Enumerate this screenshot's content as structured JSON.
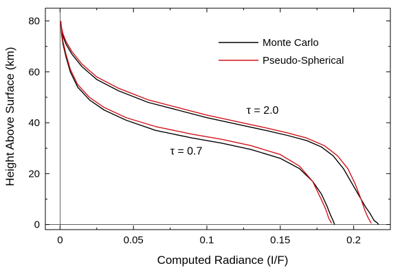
{
  "chart_data": {
    "type": "line",
    "xlabel": "Computed Radiance (I/F)",
    "ylabel": "Height Above Surface (km)",
    "xlim": [
      -0.01,
      0.225
    ],
    "ylim": [
      -2,
      85
    ],
    "xticks": [
      0,
      0.05,
      0.1,
      0.15,
      0.2
    ],
    "xtick_labels": [
      "0",
      "0.05",
      "0.1",
      "0.15",
      "0.2"
    ],
    "yticks": [
      0,
      20,
      40,
      60,
      80
    ],
    "ytick_labels": [
      "0",
      "20",
      "40",
      "60",
      "80"
    ],
    "grid": false,
    "legend": {
      "position": "top-right"
    },
    "series": [
      {
        "name": "Monte Carlo",
        "color": "#000000",
        "group": "tau-2.0",
        "x": [
          0.0005,
          0.001,
          0.002,
          0.004,
          0.008,
          0.015,
          0.025,
          0.04,
          0.06,
          0.08,
          0.1,
          0.12,
          0.14,
          0.155,
          0.168,
          0.178,
          0.186,
          0.193,
          0.199,
          0.204,
          0.208,
          0.211,
          0.213,
          0.214,
          0.216,
          0.217
        ],
        "y": [
          79,
          77,
          74,
          71,
          67,
          62,
          57,
          52.5,
          48,
          45,
          42,
          39.5,
          37,
          35,
          33,
          30.5,
          27,
          22,
          16,
          11,
          7,
          4.5,
          2.5,
          1.5,
          0.7,
          0
        ]
      },
      {
        "name": "Pseudo-Spherical",
        "color": "#d0131a",
        "group": "tau-2.0",
        "x": [
          0.0005,
          0.001,
          0.002,
          0.004,
          0.008,
          0.015,
          0.025,
          0.04,
          0.06,
          0.08,
          0.1,
          0.12,
          0.14,
          0.155,
          0.168,
          0.18,
          0.189,
          0.196,
          0.201,
          0.205,
          0.208,
          0.21,
          0.212
        ],
        "y": [
          80,
          77.5,
          75,
          72,
          68,
          63,
          58,
          53.5,
          49,
          46,
          43,
          40.5,
          38,
          36,
          34,
          31,
          27,
          22,
          16,
          10,
          5,
          2.5,
          0.5
        ]
      },
      {
        "name": "Monte Carlo",
        "color": "#000000",
        "group": "tau-0.7",
        "x": [
          0.0005,
          0.001,
          0.002,
          0.004,
          0.007,
          0.012,
          0.02,
          0.03,
          0.045,
          0.065,
          0.09,
          0.11,
          0.13,
          0.15,
          0.163,
          0.172,
          0.178,
          0.182,
          0.184,
          0.186,
          0.187
        ],
        "y": [
          79,
          75,
          71,
          66,
          60,
          54,
          49,
          45,
          41,
          37,
          34,
          32,
          29.5,
          26,
          22,
          17,
          12,
          7,
          4,
          1.5,
          0
        ]
      },
      {
        "name": "Pseudo-Spherical",
        "color": "#d0131a",
        "group": "tau-0.7",
        "x": [
          0.0005,
          0.001,
          0.002,
          0.004,
          0.007,
          0.012,
          0.02,
          0.03,
          0.045,
          0.065,
          0.09,
          0.11,
          0.13,
          0.15,
          0.163,
          0.172,
          0.177,
          0.181,
          0.183,
          0.185
        ],
        "y": [
          80,
          76,
          72,
          67,
          61,
          55,
          50,
          46,
          42,
          38.5,
          35.5,
          33.5,
          31,
          27.5,
          23,
          17,
          11,
          6,
          2.5,
          0.5
        ]
      }
    ],
    "annotations": [
      {
        "text": "τ = 2.0",
        "x": 0.127,
        "y": 43.5
      },
      {
        "text": "τ = 0.7",
        "x": 0.075,
        "y": 27.5
      }
    ]
  }
}
